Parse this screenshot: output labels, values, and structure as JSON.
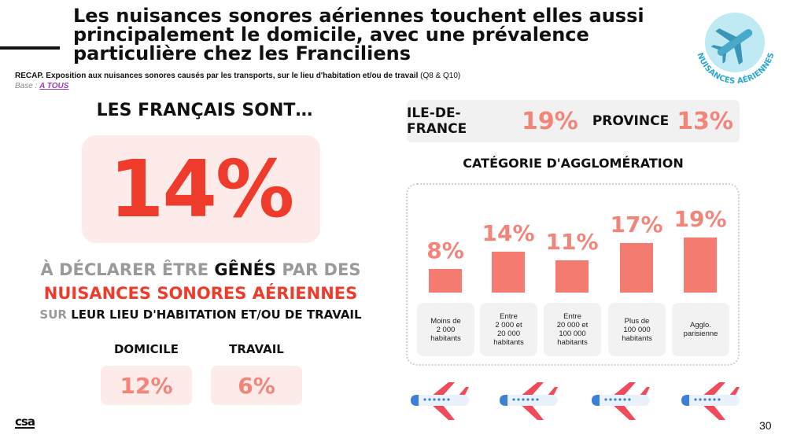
{
  "header": {
    "title": "Les nuisances sonores aériennes touchent elles aussi principalement le domicile, avec une prévalence particulière chez les Franciliens",
    "subtitle_bold": "RECAP. Exposition aux nuisances sonores causés par les transports, sur le lieu d'habitation et/ou de travail",
    "subtitle_ref": "(Q8 & Q10)",
    "base_label": "Base :",
    "base_link": "A TOUS"
  },
  "badge": {
    "text": "NUISANCES AÉRIENNES",
    "circle_color": "#bfe9f3",
    "icon": "airplane-icon"
  },
  "left": {
    "heading": "LES FRANÇAIS SONT…",
    "big_value": "14%",
    "line1_a": "À DÉCLARER ÊTRE",
    "line1_b": "GÊNÉS",
    "line1_c": "PAR DES",
    "line2": "NUISANCES SONORES AÉRIENNES",
    "line3_a": "SUR",
    "line3_b": "LEUR LIEU D'HABITATION ET/OU DE TRAVAIL",
    "domicile_label": "DOMICILE",
    "domicile_value": "12%",
    "travail_label": "TRAVAIL",
    "travail_value": "6%"
  },
  "regions": {
    "idf_label": "ILE-DE-FRANCE",
    "idf_value": "19%",
    "prov_label": "PROVINCE",
    "prov_value": "13%"
  },
  "agglo": {
    "title": "CATÉGORIE D'AGGLOMÉRATION"
  },
  "chart_data": {
    "type": "bar",
    "title": "CATÉGORIE D'AGGLOMÉRATION",
    "categories": [
      "Moins de\n2 000\nhabitants",
      "Entre\n2 000 et\n20 000\nhabitants",
      "Entre\n20 000 et\n100 000\nhabitants",
      "Plus de\n100 000\nhabitants",
      "Agglo.\nparisienne"
    ],
    "values": [
      8,
      14,
      11,
      17,
      19
    ],
    "value_labels": [
      "8%",
      "14%",
      "11%",
      "17%",
      "19%"
    ],
    "bar_color": "#f47b6f"
  },
  "colors": {
    "accent": "#ef3b2c",
    "accent_light": "#f2857a",
    "box_bg": "#fcebe9"
  },
  "footer": {
    "logo": "csa",
    "page": "30"
  }
}
